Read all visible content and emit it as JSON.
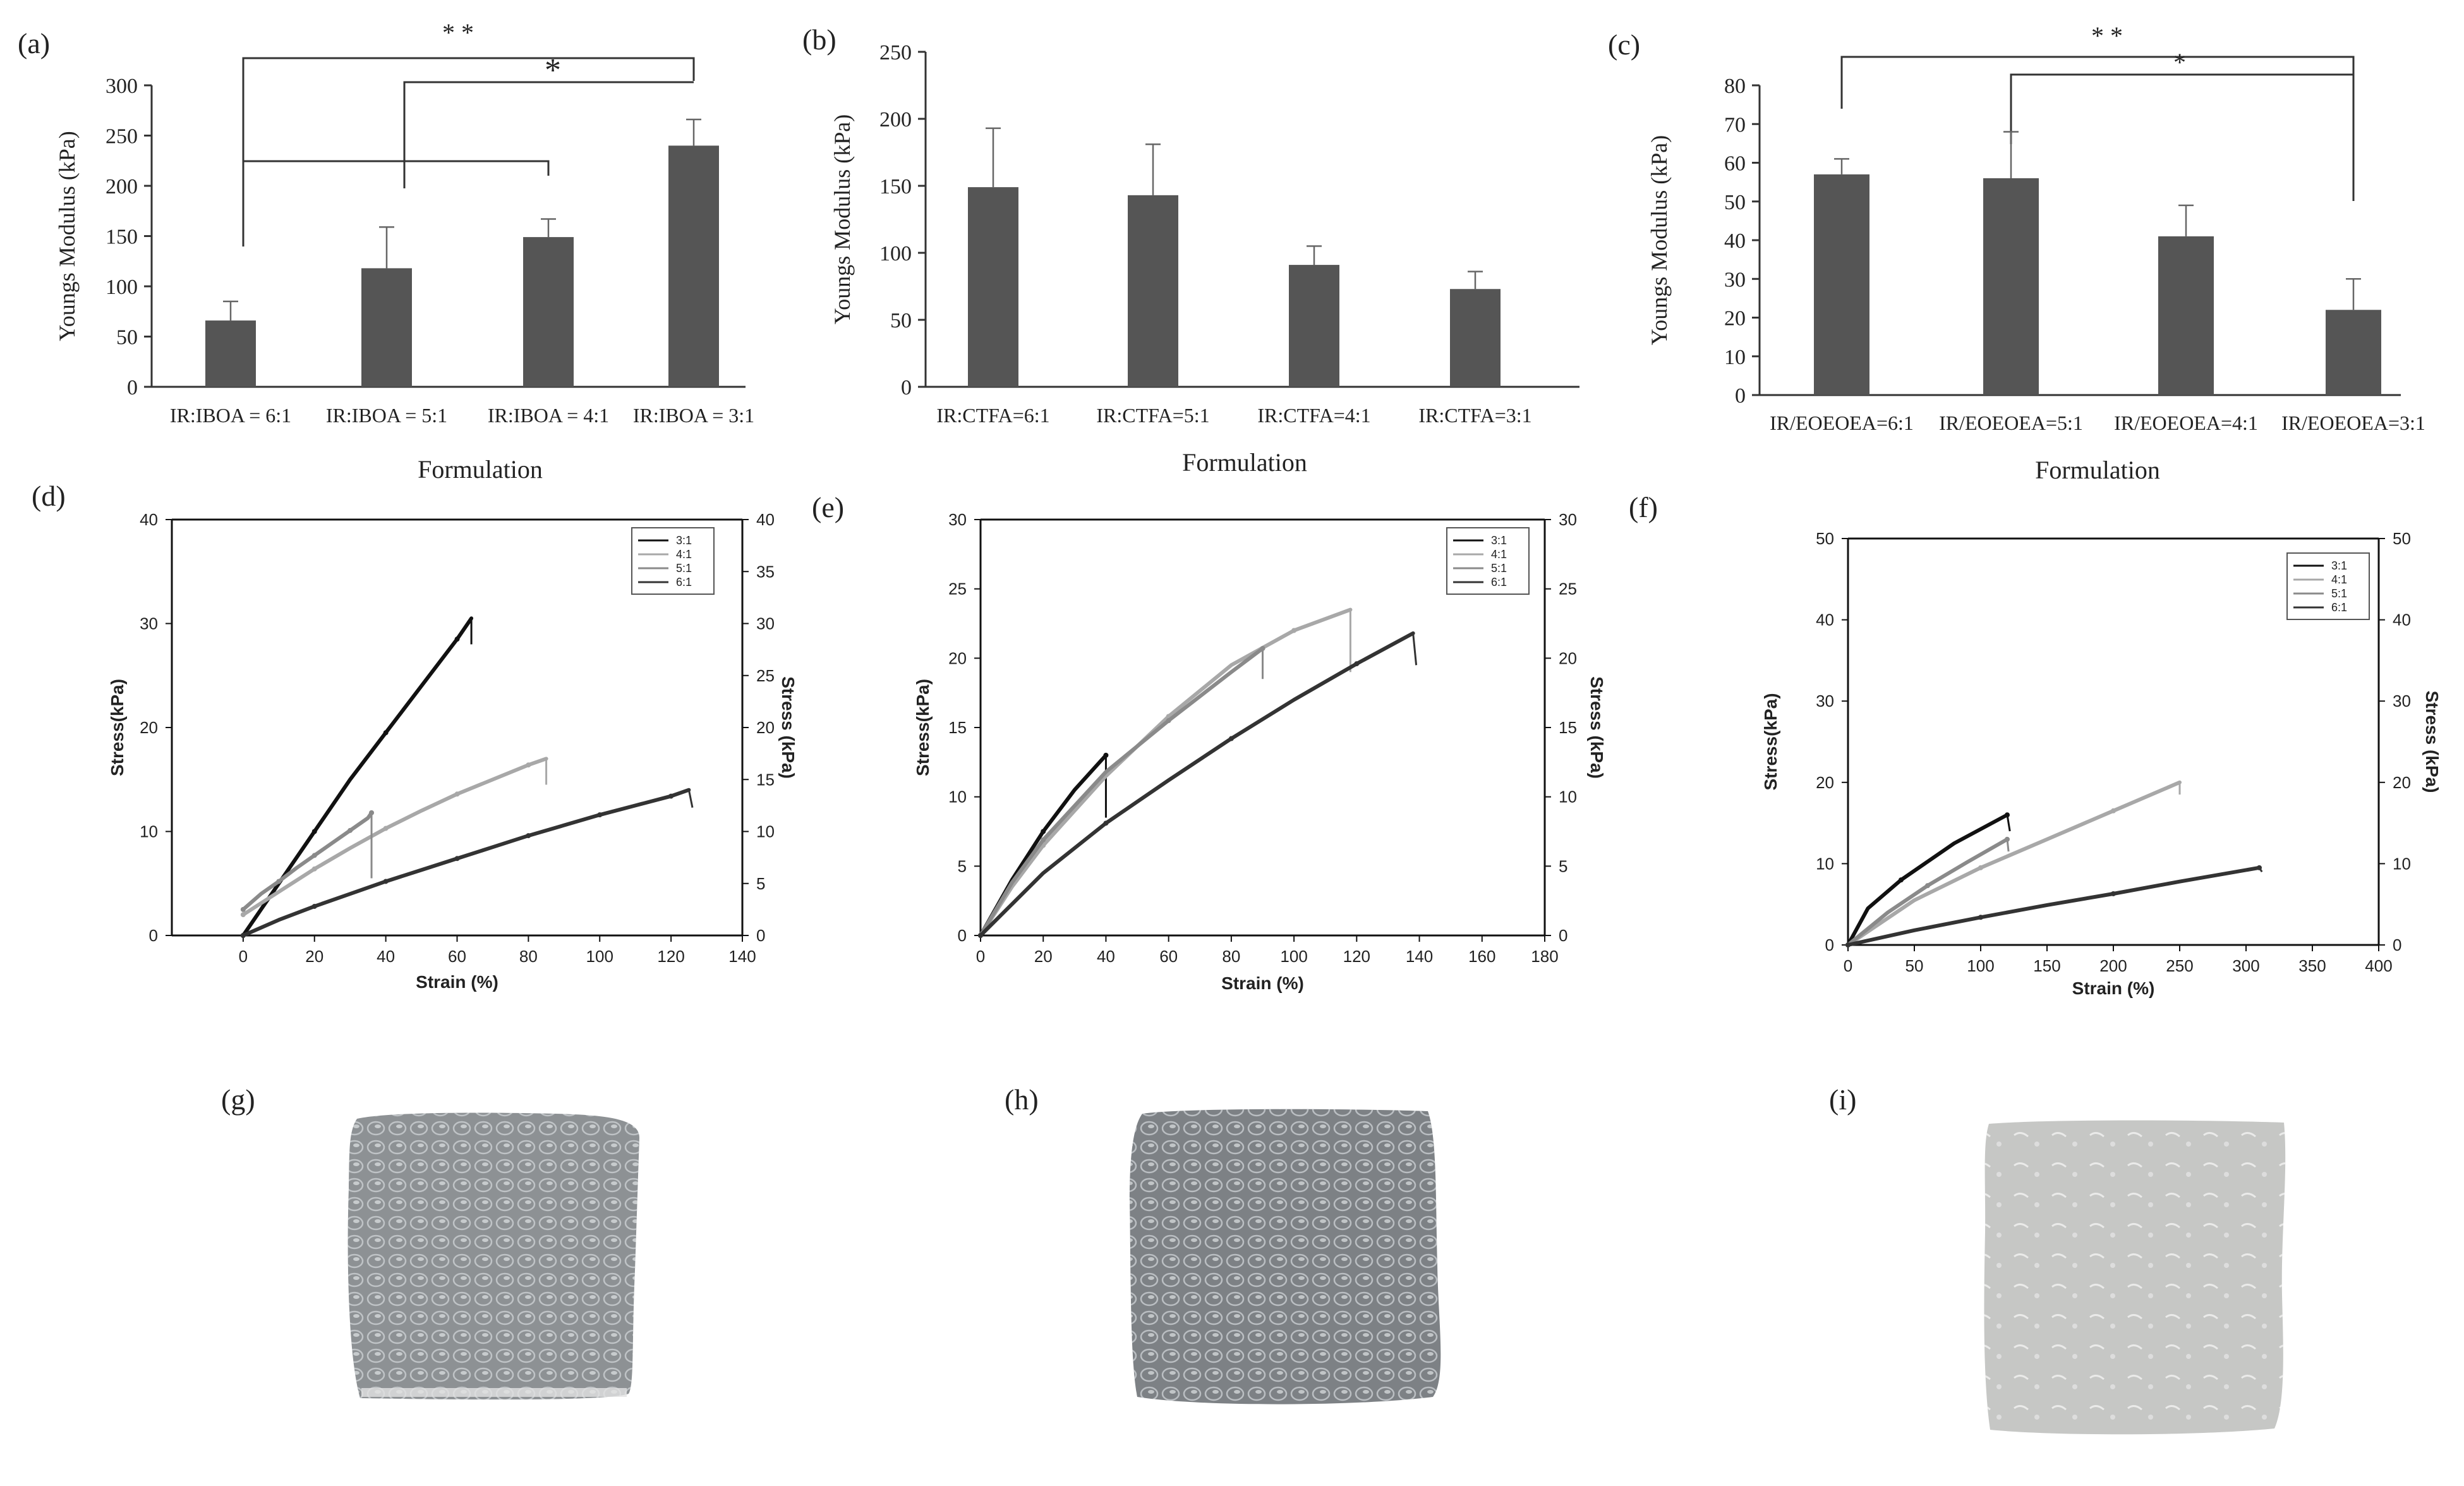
{
  "panel_labels": {
    "a": "(a)",
    "b": "(b)",
    "c": "(c)",
    "d": "(d)",
    "e": "(e)",
    "f": "(f)",
    "g": "(g)",
    "h": "(h)",
    "i": "(i)"
  },
  "colors": {
    "bar": "#555555",
    "axis": "#333333",
    "s31": "#111111",
    "s41": "#a8a8a8",
    "s51": "#8a8a8a",
    "s61": "#333333"
  },
  "chart_data": [
    {
      "id": "a",
      "type": "bar",
      "categories": [
        "IR:IBOA = 6:1",
        "IR:IBOA = 5:1",
        "IR:IBOA = 4:1",
        "IR:IBOA = 3:1"
      ],
      "values": [
        66,
        118,
        149,
        240
      ],
      "errors": [
        19,
        41,
        18,
        26
      ],
      "ylabel": "Youngs Modulus (kPa)",
      "xlabel": "Formulation",
      "ylim": [
        0,
        300
      ],
      "yticks": [
        0,
        50,
        100,
        150,
        200,
        250,
        300
      ],
      "significance": [
        {
          "label": "* *"
        },
        {
          "label": "*"
        }
      ]
    },
    {
      "id": "b",
      "type": "bar",
      "categories": [
        "IR:CTFA=6:1",
        "IR:CTFA=5:1",
        "IR:CTFA=4:1",
        "IR:CTFA=3:1"
      ],
      "values": [
        149,
        143,
        91,
        73
      ],
      "errors": [
        44,
        38,
        14,
        13
      ],
      "ylabel": "Youngs Modulus (kPa)",
      "xlabel": "Formulation",
      "ylim": [
        0,
        250
      ],
      "yticks": [
        0,
        50,
        100,
        150,
        200,
        250
      ]
    },
    {
      "id": "c",
      "type": "bar",
      "categories": [
        "IR/EOEOEA=6:1",
        "IR/EOEOEA=5:1",
        "IR/EOEOEA=4:1",
        "IR/EOEOEA=3:1"
      ],
      "values": [
        57,
        56,
        41,
        22
      ],
      "errors": [
        4,
        12,
        8,
        8
      ],
      "ylabel": "Youngs Modulus (kPa)",
      "xlabel": "Formulation",
      "ylim": [
        0,
        80
      ],
      "yticks": [
        0,
        10,
        20,
        30,
        40,
        50,
        60,
        70,
        80
      ],
      "significance": [
        {
          "label": "* *"
        },
        {
          "label": "*"
        }
      ]
    },
    {
      "id": "d",
      "type": "line",
      "xlabel": "Strain  (%)",
      "ylabel": "Stress(kPa)",
      "ylabel_right": "Stress  (kPa)",
      "xlim": [
        -20,
        140
      ],
      "xticks": [
        0,
        20,
        40,
        60,
        80,
        100,
        120,
        140
      ],
      "ylim": [
        0,
        40
      ],
      "yticks": [
        0,
        10,
        20,
        30,
        40
      ],
      "yticks_right": [
        0,
        5,
        10,
        15,
        20,
        25,
        30,
        35,
        40
      ],
      "legend": [
        "3:1",
        "4:1",
        "5:1",
        "6:1"
      ],
      "series": [
        {
          "name": "3:1",
          "color_key": "s31",
          "x": [
            0,
            10,
            20,
            30,
            40,
            50,
            60,
            64
          ],
          "y": [
            0,
            5,
            10,
            15,
            19.5,
            24,
            28.5,
            30.5
          ],
          "drop": [
            64,
            28
          ]
        },
        {
          "name": "4:1",
          "color_key": "s41",
          "x": [
            0,
            10,
            20,
            30,
            40,
            50,
            60,
            70,
            80,
            85
          ],
          "y": [
            2,
            4.2,
            6.4,
            8.4,
            10.3,
            12,
            13.6,
            15,
            16.4,
            17
          ],
          "drop": [
            85,
            14.5
          ]
        },
        {
          "name": "5:1",
          "color_key": "s51",
          "x": [
            0,
            5,
            10,
            15,
            20,
            25,
            30,
            35,
            36
          ],
          "y": [
            2.5,
            4,
            5.2,
            6.5,
            7.7,
            8.9,
            10.1,
            11.3,
            11.8
          ],
          "drop": [
            36,
            5.5
          ]
        },
        {
          "name": "6:1",
          "color_key": "s61",
          "x": [
            0,
            10,
            20,
            30,
            40,
            50,
            60,
            70,
            80,
            90,
            100,
            110,
            120,
            125
          ],
          "y": [
            0,
            1.5,
            2.8,
            4,
            5.2,
            6.3,
            7.4,
            8.5,
            9.6,
            10.6,
            11.6,
            12.5,
            13.4,
            14
          ],
          "drop": [
            126,
            12.3
          ]
        }
      ]
    },
    {
      "id": "e",
      "type": "line",
      "xlabel": "Strain  (%)",
      "ylabel": "Stress(kPa)",
      "ylabel_right": "Stress  (kPa)",
      "xlim": [
        0,
        180
      ],
      "xticks": [
        0,
        20,
        40,
        60,
        80,
        100,
        120,
        140,
        160,
        180
      ],
      "ylim": [
        0,
        30
      ],
      "yticks": [
        0,
        5,
        10,
        15,
        20,
        25,
        30
      ],
      "yticks_right": [
        0,
        5,
        10,
        15,
        20,
        25,
        30
      ],
      "legend": [
        "3:1",
        "4:1",
        "5:1",
        "6:1"
      ],
      "series": [
        {
          "name": "3:1",
          "color_key": "s31",
          "x": [
            0,
            10,
            20,
            30,
            40
          ],
          "y": [
            0,
            4,
            7.5,
            10.5,
            13
          ],
          "drop": [
            40,
            8.5
          ]
        },
        {
          "name": "4:1",
          "color_key": "s41",
          "x": [
            0,
            10,
            20,
            40,
            60,
            80,
            100,
            118
          ],
          "y": [
            0,
            3.5,
            6.5,
            11.5,
            15.8,
            19.5,
            22,
            23.5
          ],
          "drop": [
            118,
            19
          ]
        },
        {
          "name": "5:1",
          "color_key": "s51",
          "x": [
            0,
            10,
            20,
            40,
            60,
            80,
            90
          ],
          "y": [
            0,
            3.8,
            6.9,
            11.8,
            15.5,
            19,
            20.7
          ],
          "drop": [
            90,
            18.5
          ]
        },
        {
          "name": "6:1",
          "color_key": "s61",
          "x": [
            0,
            20,
            40,
            60,
            80,
            100,
            120,
            138
          ],
          "y": [
            0,
            4.5,
            8.1,
            11.2,
            14.2,
            17,
            19.6,
            21.8
          ],
          "drop": [
            139,
            19.5
          ]
        }
      ]
    },
    {
      "id": "f",
      "type": "line",
      "xlabel": "Strain  (%)",
      "ylabel": "Stress(kPa)",
      "ylabel_right": "Stress  (kPa)",
      "xlim": [
        0,
        400
      ],
      "xticks": [
        0,
        50,
        100,
        150,
        200,
        250,
        300,
        350,
        400
      ],
      "ylim": [
        0,
        50
      ],
      "yticks": [
        0,
        10,
        20,
        30,
        40,
        50
      ],
      "yticks_right": [
        0,
        10,
        20,
        30,
        40,
        50
      ],
      "legend": [
        "3:1",
        "4:1",
        "5:1",
        "6:1"
      ],
      "series": [
        {
          "name": "3:1",
          "color_key": "s31",
          "x": [
            0,
            15,
            40,
            80,
            120
          ],
          "y": [
            0,
            4.5,
            8,
            12.5,
            16
          ],
          "drop": [
            122,
            14
          ]
        },
        {
          "name": "4:1",
          "color_key": "s41",
          "x": [
            0,
            50,
            100,
            150,
            200,
            250
          ],
          "y": [
            0,
            5.5,
            9.5,
            13,
            16.5,
            20
          ],
          "drop": [
            250,
            18.5
          ]
        },
        {
          "name": "5:1",
          "color_key": "s51",
          "x": [
            0,
            30,
            60,
            90,
            120
          ],
          "y": [
            0,
            4,
            7.3,
            10.2,
            13
          ],
          "drop": [
            121,
            11.5
          ]
        },
        {
          "name": "6:1",
          "color_key": "s61",
          "x": [
            0,
            50,
            100,
            150,
            200,
            250,
            310
          ],
          "y": [
            0,
            1.8,
            3.4,
            4.9,
            6.3,
            7.8,
            9.5
          ],
          "drop": [
            312,
            9
          ]
        }
      ]
    }
  ]
}
